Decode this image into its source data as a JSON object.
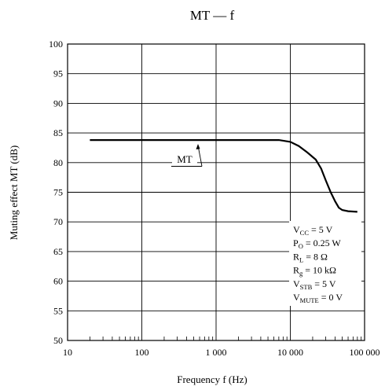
{
  "chart_data": {
    "type": "line",
    "title": "MT — f",
    "xlabel": "Frequency  f  (Hz)",
    "ylabel": "Muting effect  MT  (dB)",
    "x_scale": "log",
    "xlim": [
      10,
      100000
    ],
    "ylim": [
      50,
      100
    ],
    "grid": true,
    "x_ticks": [
      "10",
      "100",
      "1 000",
      "10 000",
      "100 000"
    ],
    "y_ticks": [
      "50",
      "55",
      "60",
      "65",
      "70",
      "75",
      "80",
      "85",
      "90",
      "95",
      "100"
    ],
    "series": [
      {
        "name": "MT",
        "x": [
          20,
          1000,
          7000,
          10000,
          13000,
          17000,
          22000,
          26000,
          30000,
          35000,
          40000,
          45000,
          50000,
          60000,
          80000
        ],
        "y": [
          83.8,
          83.8,
          83.8,
          83.5,
          82.8,
          81.7,
          80.5,
          79.0,
          77.0,
          75.0,
          73.5,
          72.4,
          72.0,
          71.8,
          71.7
        ]
      }
    ],
    "annotations": [
      {
        "text": "MT",
        "target": "series-line"
      }
    ],
    "conditions": [
      {
        "base": "V",
        "sub": "CC",
        "rest": " = 5 V"
      },
      {
        "base": "P",
        "sub": "O",
        "rest": " = 0.25 W"
      },
      {
        "base": "R",
        "sub": "L",
        "rest": " = 8 Ω"
      },
      {
        "base": "R",
        "sub": "g",
        "rest": " = 10 kΩ"
      },
      {
        "base": "V",
        "sub": "STB",
        "rest": " = 5 V"
      },
      {
        "base": "V",
        "sub": "MUTE",
        "rest": " = 0 V"
      }
    ]
  }
}
